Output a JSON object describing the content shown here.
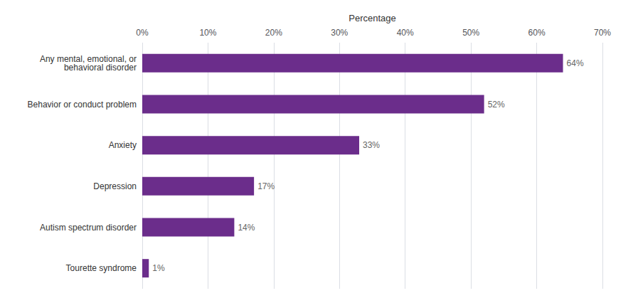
{
  "chart_data": {
    "type": "bar",
    "orientation": "horizontal",
    "xlabel": "Percentage",
    "categories": [
      "Tourette syndrome",
      "Autism spectrum disorder",
      "Depression",
      "Anxiety",
      "Behavior or conduct problem",
      "Any mental, emotional, or\n  behavioral disorder"
    ],
    "values": [
      1,
      14,
      17,
      33,
      52,
      64
    ],
    "value_labels": [
      "1%",
      "14%",
      "17%",
      "33%",
      "52%",
      "64%"
    ],
    "data_labels": true,
    "color": "#6B2D8B",
    "xlim": [
      0,
      70
    ],
    "xticks": [
      {
        "value": 0,
        "label": "0%"
      },
      {
        "value": 10,
        "label": "10%"
      },
      {
        "value": 20,
        "label": "20%"
      },
      {
        "value": 30,
        "label": "30%"
      },
      {
        "value": 40,
        "label": "40%"
      },
      {
        "value": 50,
        "label": "50%"
      },
      {
        "value": 60,
        "label": "60%"
      },
      {
        "value": 70,
        "label": "70%"
      }
    ],
    "grid": true
  }
}
